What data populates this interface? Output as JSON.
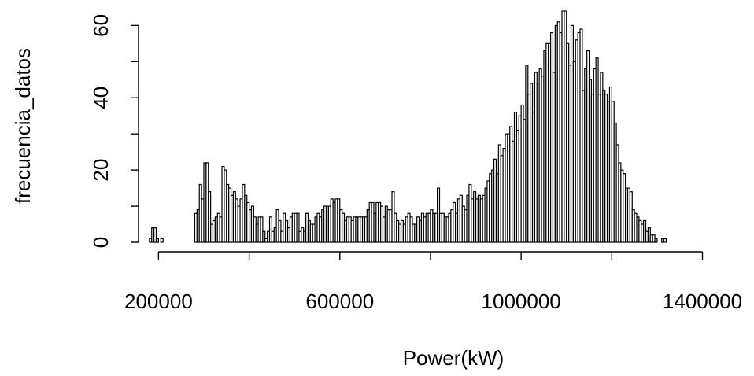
{
  "chart_data": {
    "type": "bar",
    "title": "",
    "xlabel": "Power(kW)",
    "ylabel": "frecuencia_datos",
    "xlim": [
      175000,
      1505000
    ],
    "ylim": [
      0,
      64
    ],
    "grid": false,
    "bar_fill": "#ffffff",
    "bar_stroke": "#000000",
    "x_ticks": [
      {
        "value": 200000,
        "label": "200000"
      },
      {
        "value": 400000,
        "label": ""
      },
      {
        "value": 600000,
        "label": "600000"
      },
      {
        "value": 800000,
        "label": ""
      },
      {
        "value": 1000000,
        "label": "1000000"
      },
      {
        "value": 1200000,
        "label": ""
      },
      {
        "value": 1400000,
        "label": "1400000"
      }
    ],
    "y_ticks": [
      {
        "value": 0,
        "label": "0"
      },
      {
        "value": 10,
        "label": ""
      },
      {
        "value": 20,
        "label": "20"
      },
      {
        "value": 30,
        "label": ""
      },
      {
        "value": 40,
        "label": "40"
      },
      {
        "value": 50,
        "label": ""
      },
      {
        "value": 60,
        "label": "60"
      }
    ],
    "bin_start": 180000,
    "bin_width": 5000,
    "values": [
      1,
      4,
      4,
      1,
      0,
      1,
      0,
      0,
      0,
      0,
      0,
      0,
      0,
      0,
      0,
      0,
      0,
      0,
      0,
      0,
      8,
      9,
      16,
      12,
      22,
      22,
      14,
      5,
      6,
      7,
      8,
      7,
      21,
      20,
      16,
      15,
      13,
      14,
      12,
      10,
      12,
      16,
      13,
      11,
      9,
      10,
      7,
      5,
      7,
      7,
      3,
      1,
      3,
      7,
      3,
      4,
      9,
      6,
      3,
      8,
      6,
      4,
      7,
      8,
      8,
      8,
      3,
      4,
      3,
      8,
      6,
      5,
      5,
      7,
      8,
      7,
      9,
      10,
      10,
      10,
      12,
      11,
      12,
      12,
      9,
      8,
      6,
      7,
      7,
      6,
      7,
      7,
      7,
      7,
      7,
      7,
      9,
      11,
      11,
      8,
      11,
      11,
      10,
      7,
      10,
      9,
      9,
      14,
      8,
      6,
      5,
      6,
      5,
      7,
      8,
      7,
      5,
      5,
      7,
      6,
      8,
      7,
      8,
      8,
      9,
      8,
      8,
      15,
      8,
      8,
      7,
      7,
      8,
      9,
      11,
      8,
      12,
      13,
      10,
      9,
      13,
      16,
      12,
      14,
      12,
      13,
      12,
      13,
      15,
      17,
      19,
      20,
      23,
      19,
      27,
      24,
      26,
      30,
      30,
      32,
      28,
      36,
      31,
      35,
      38,
      34,
      49,
      41,
      44,
      36,
      47,
      44,
      48,
      46,
      53,
      55,
      55,
      58,
      47,
      60,
      61,
      58,
      64,
      64,
      55,
      49,
      60,
      50,
      56,
      58,
      59,
      42,
      48,
      53,
      45,
      41,
      48,
      51,
      41,
      47,
      42,
      41,
      39,
      43,
      39,
      33,
      27,
      22,
      20,
      19,
      15,
      15,
      14,
      9,
      8,
      7,
      6,
      5,
      6,
      3,
      4,
      2,
      2,
      1,
      0,
      0,
      1,
      1
    ]
  }
}
